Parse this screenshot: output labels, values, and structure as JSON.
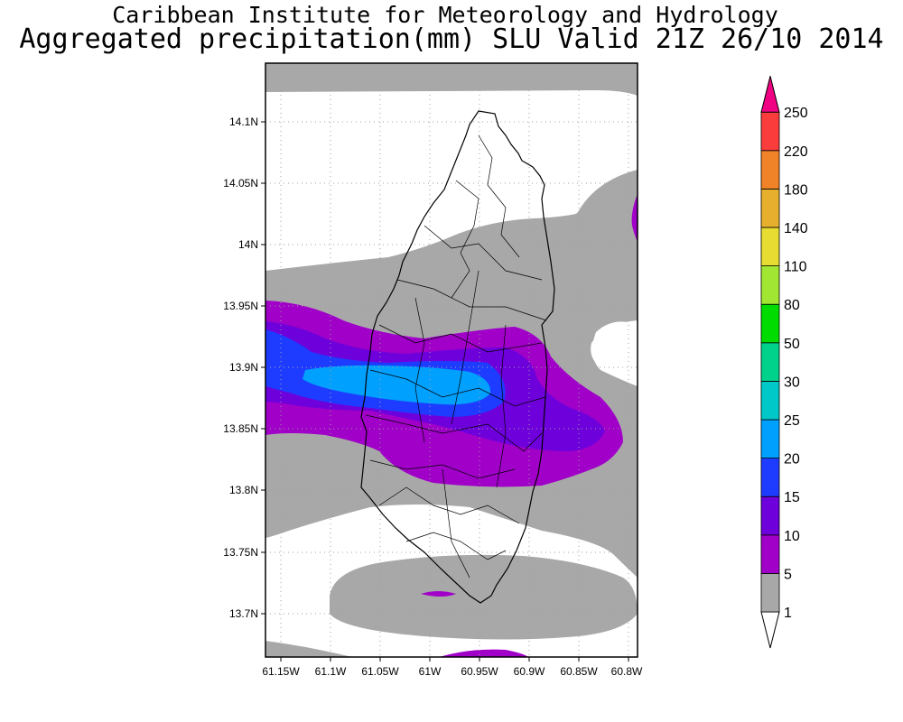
{
  "title": {
    "line1": "Caribbean Institute for Meteorology and Hydrology",
    "line2": "Aggregated precipitation(mm) SLU Valid 21Z 26/10 2014"
  },
  "map": {
    "lon_ticks": [
      "61.15W",
      "61.1W",
      "61.05W",
      "61W",
      "60.95W",
      "60.9W",
      "60.85W",
      "60.8W"
    ],
    "lat_ticks": [
      "14.1N",
      "14.05N",
      "14N",
      "13.95N",
      "13.9N",
      "13.85N",
      "13.8N",
      "13.75N",
      "13.7N"
    ],
    "gridlines": "dotted"
  },
  "colorbar": {
    "levels": [
      {
        "label": "1",
        "color": "#ffffff"
      },
      {
        "label": "5",
        "color": "#a8a8a8"
      },
      {
        "label": "10",
        "color": "#a000c8"
      },
      {
        "label": "15",
        "color": "#6e00dc"
      },
      {
        "label": "20",
        "color": "#1e3cff"
      },
      {
        "label": "25",
        "color": "#00a0ff"
      },
      {
        "label": "30",
        "color": "#00c8c8"
      },
      {
        "label": "50",
        "color": "#00d28c"
      },
      {
        "label": "80",
        "color": "#00dc00"
      },
      {
        "label": "110",
        "color": "#a0e632"
      },
      {
        "label": "140",
        "color": "#e6dc32"
      },
      {
        "label": "180",
        "color": "#e6af2d"
      },
      {
        "label": "220",
        "color": "#f08228"
      },
      {
        "label": "250",
        "color": "#fa3c3c"
      }
    ],
    "top_arrow_color": "#f00082"
  },
  "colors": {
    "c1": "#a8a8a8",
    "c5": "#a000c8",
    "c10": "#6e00dc",
    "c15": "#1e3cff",
    "c20": "#00a0ff"
  }
}
